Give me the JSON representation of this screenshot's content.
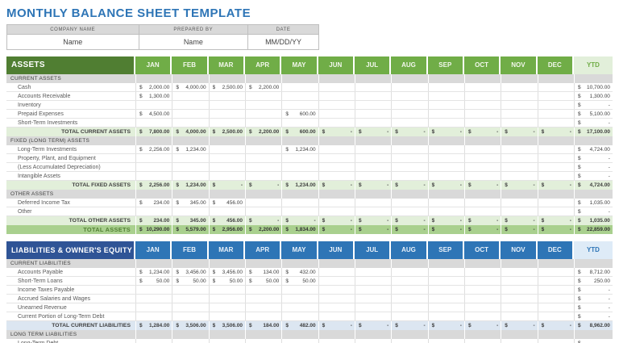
{
  "title": "MONTHLY BALANCE SHEET TEMPLATE",
  "currency_symbol": "$",
  "info": {
    "headers": [
      "COMPANY NAME",
      "PREPARED BY",
      "DATE"
    ],
    "values": [
      "Name",
      "Name",
      "MM/DD/YY"
    ]
  },
  "months": [
    "JAN",
    "FEB",
    "MAR",
    "APR",
    "MAY",
    "JUN",
    "JUL",
    "AUG",
    "SEP",
    "OCT",
    "NOV",
    "DEC"
  ],
  "ytd_label": "YTD",
  "colors": {
    "title_blue": "#2e75b6",
    "assets_header_dark_green": "#507e32",
    "assets_month_green": "#70ad47",
    "assets_ytd_light_green": "#e2efda",
    "assets_total_row_green": "#e2efda",
    "assets_grand_total_green": "#a9d08e",
    "liabilities_header_dark_blue": "#2f5496",
    "liabilities_month_blue": "#2e75b6",
    "liabilities_ytd_light_blue": "#deebf7",
    "liabilities_total_row_blue": "#dce6f1",
    "section_row_gray": "#d9d9d9"
  },
  "assets": {
    "header": "ASSETS",
    "rows": [
      {
        "type": "section",
        "label": "CURRENT ASSETS"
      },
      {
        "type": "data",
        "label": "Cash",
        "months": [
          "2,000.00",
          "4,000.00",
          "2,500.00",
          "2,200.00",
          null,
          null,
          null,
          null,
          null,
          null,
          null,
          null
        ],
        "ytd": "10,700.00"
      },
      {
        "type": "data",
        "label": "Accounts Receivable",
        "months": [
          "1,300.00",
          null,
          null,
          null,
          null,
          null,
          null,
          null,
          null,
          null,
          null,
          null
        ],
        "ytd": "1,300.00"
      },
      {
        "type": "data",
        "label": "Inventory",
        "months": [
          null,
          null,
          null,
          null,
          null,
          null,
          null,
          null,
          null,
          null,
          null,
          null
        ],
        "ytd": "-"
      },
      {
        "type": "data",
        "label": "Prepaid Expenses",
        "months": [
          "4,500.00",
          null,
          null,
          null,
          "600.00",
          null,
          null,
          null,
          null,
          null,
          null,
          null
        ],
        "ytd": "5,100.00"
      },
      {
        "type": "data",
        "label": "Short-Term Investments",
        "months": [
          null,
          null,
          null,
          null,
          null,
          null,
          null,
          null,
          null,
          null,
          null,
          null
        ],
        "ytd": "-"
      },
      {
        "type": "total",
        "label": "TOTAL CURRENT ASSETS",
        "months": [
          "7,800.00",
          "4,000.00",
          "2,500.00",
          "2,200.00",
          "600.00",
          "-",
          "-",
          "-",
          "-",
          "-",
          "-",
          "-"
        ],
        "ytd": "17,100.00"
      },
      {
        "type": "section",
        "label": "FIXED (LONG TERM) ASSETS"
      },
      {
        "type": "data",
        "label": "Long-Term Investments",
        "months": [
          "2,256.00",
          "1,234.00",
          null,
          null,
          "1,234.00",
          null,
          null,
          null,
          null,
          null,
          null,
          null
        ],
        "ytd": "4,724.00"
      },
      {
        "type": "data",
        "label": "Property, Plant, and Equipment",
        "months": [
          null,
          null,
          null,
          null,
          null,
          null,
          null,
          null,
          null,
          null,
          null,
          null
        ],
        "ytd": "-"
      },
      {
        "type": "data",
        "label": "(Less Accumulated Depreciation)",
        "months": [
          null,
          null,
          null,
          null,
          null,
          null,
          null,
          null,
          null,
          null,
          null,
          null
        ],
        "ytd": "-"
      },
      {
        "type": "data",
        "label": "Intangible Assets",
        "months": [
          null,
          null,
          null,
          null,
          null,
          null,
          null,
          null,
          null,
          null,
          null,
          null
        ],
        "ytd": "-"
      },
      {
        "type": "total",
        "label": "TOTAL FIXED ASSETS",
        "months": [
          "2,256.00",
          "1,234.00",
          "-",
          "-",
          "1,234.00",
          "-",
          "-",
          "-",
          "-",
          "-",
          "-",
          "-"
        ],
        "ytd": "4,724.00"
      },
      {
        "type": "section",
        "label": "OTHER ASSETS"
      },
      {
        "type": "data",
        "label": "Deferred Income Tax",
        "months": [
          "234.00",
          "345.00",
          "456.00",
          null,
          null,
          null,
          null,
          null,
          null,
          null,
          null,
          null
        ],
        "ytd": "1,035.00"
      },
      {
        "type": "data",
        "label": "Other",
        "months": [
          null,
          null,
          null,
          null,
          null,
          null,
          null,
          null,
          null,
          null,
          null,
          null
        ],
        "ytd": "-"
      },
      {
        "type": "total",
        "label": "TOTAL OTHER ASSETS",
        "months": [
          "234.00",
          "345.00",
          "456.00",
          "-",
          "-",
          "-",
          "-",
          "-",
          "-",
          "-",
          "-",
          "-"
        ],
        "ytd": "1,035.00"
      },
      {
        "type": "grand",
        "label": "TOTAL ASSETS",
        "months": [
          "10,290.00",
          "5,579.00",
          "2,956.00",
          "2,200.00",
          "1,834.00",
          "-",
          "-",
          "-",
          "-",
          "-",
          "-",
          "-"
        ],
        "ytd": "22,859.00"
      }
    ]
  },
  "liabilities": {
    "header": "LIABILITIES & OWNER'S EQUITY",
    "rows": [
      {
        "type": "section",
        "label": "CURRENT LIABILITIES"
      },
      {
        "type": "data",
        "label": "Accounts Payable",
        "months": [
          "1,234.00",
          "3,456.00",
          "3,456.00",
          "134.00",
          "432.00",
          null,
          null,
          null,
          null,
          null,
          null,
          null
        ],
        "ytd": "8,712.00"
      },
      {
        "type": "data",
        "label": "Short-Term Loans",
        "months": [
          "50.00",
          "50.00",
          "50.00",
          "50.00",
          "50.00",
          null,
          null,
          null,
          null,
          null,
          null,
          null
        ],
        "ytd": "250.00"
      },
      {
        "type": "data",
        "label": "Income Taxes Payable",
        "months": [
          null,
          null,
          null,
          null,
          null,
          null,
          null,
          null,
          null,
          null,
          null,
          null
        ],
        "ytd": "-"
      },
      {
        "type": "data",
        "label": "Accrued Salaries and Wages",
        "months": [
          null,
          null,
          null,
          null,
          null,
          null,
          null,
          null,
          null,
          null,
          null,
          null
        ],
        "ytd": "-"
      },
      {
        "type": "data",
        "label": "Unearned Revenue",
        "months": [
          null,
          null,
          null,
          null,
          null,
          null,
          null,
          null,
          null,
          null,
          null,
          null
        ],
        "ytd": "-"
      },
      {
        "type": "data",
        "label": "Current Portion of Long-Term Debt",
        "months": [
          null,
          null,
          null,
          null,
          null,
          null,
          null,
          null,
          null,
          null,
          null,
          null
        ],
        "ytd": "-"
      },
      {
        "type": "total",
        "label": "TOTAL CURRENT LIABILITIES",
        "months": [
          "1,284.00",
          "3,506.00",
          "3,506.00",
          "184.00",
          "482.00",
          "-",
          "-",
          "-",
          "-",
          "-",
          "-",
          "-"
        ],
        "ytd": "8,962.00"
      },
      {
        "type": "section",
        "label": "LONG TERM LIABILITIES"
      },
      {
        "type": "data",
        "label": "Long-Term Debt",
        "months": [
          null,
          null,
          null,
          null,
          null,
          null,
          null,
          null,
          null,
          null,
          null,
          null
        ],
        "ytd": "-"
      }
    ]
  }
}
